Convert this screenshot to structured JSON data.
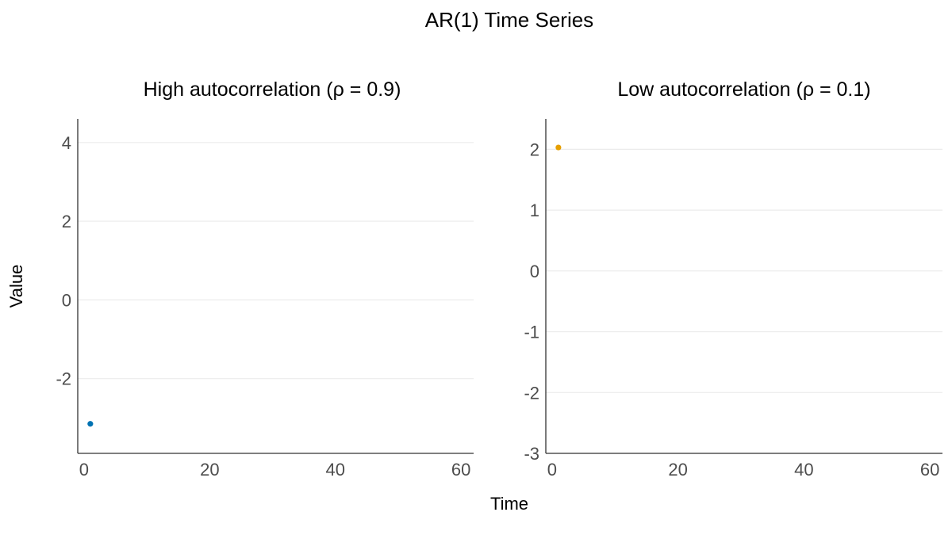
{
  "title": "AR(1) Time Series",
  "xlabel": "Time",
  "ylabel": "Value",
  "colors": {
    "high": "#0072B2",
    "low": "#E69F00",
    "grid": "#ebebeb",
    "axis": "#333333",
    "tick_text": "#4d4d4d"
  },
  "chart_data": [
    {
      "type": "scatter",
      "title": "High autocorrelation (ρ = 0.9)",
      "xlabel": "Time",
      "ylabel": "Value",
      "xlim": [
        -1,
        62
      ],
      "ylim": [
        -3.9,
        4.6
      ],
      "x_ticks": [
        0,
        20,
        40,
        60
      ],
      "y_ticks": [
        -2,
        0,
        2,
        4
      ],
      "grid": "horizontal",
      "series": [
        {
          "color": "#0072B2",
          "x": [
            1
          ],
          "y": [
            -3.15
          ]
        }
      ]
    },
    {
      "type": "scatter",
      "title": "Low autocorrelation (ρ = 0.1)",
      "xlabel": "Time",
      "ylabel": "Value",
      "xlim": [
        -1,
        62
      ],
      "ylim": [
        -3.0,
        2.5
      ],
      "x_ticks": [
        0,
        20,
        40,
        60
      ],
      "y_ticks": [
        -3,
        -2,
        -1,
        0,
        1,
        2
      ],
      "grid": "horizontal",
      "series": [
        {
          "color": "#E69F00",
          "x": [
            1
          ],
          "y": [
            2.03
          ]
        }
      ]
    }
  ]
}
